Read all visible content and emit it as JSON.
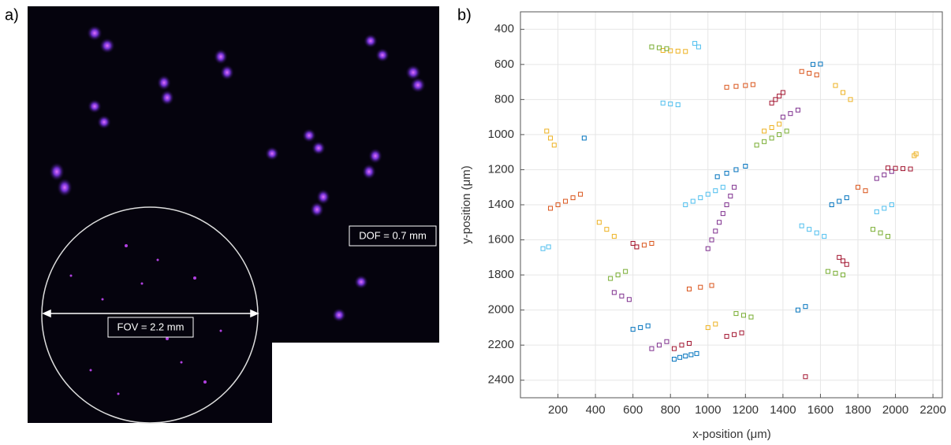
{
  "image_panel": {
    "label": "a)",
    "dof_label": "DOF = 0.7 mm",
    "fov_label": "FOV = 2.2 mm"
  },
  "chart_data": {
    "type": "scatter",
    "panel_label": "b)",
    "x_label": "x-position (μm)",
    "y_label": "y-position (μm)",
    "xlim": [
      0,
      2250
    ],
    "ylim": [
      300,
      2500
    ],
    "y_reversed": true,
    "grid": true,
    "xticks": [
      200,
      400,
      600,
      800,
      1000,
      1200,
      1400,
      1600,
      1800,
      2000,
      2200
    ],
    "yticks": [
      400,
      600,
      800,
      1000,
      1200,
      1400,
      1600,
      1800,
      2000,
      2200,
      2400
    ],
    "series": [
      {
        "color": "#0072BD",
        "x": [
          820,
          850,
          880,
          910,
          940,
          1560,
          1600,
          1660,
          1700,
          1740,
          600,
          640,
          680,
          1050,
          1100,
          1150,
          1200,
          340,
          1480,
          1520
        ],
        "y": [
          2280,
          2270,
          2262,
          2255,
          2248,
          600,
          598,
          1400,
          1380,
          1360,
          2110,
          2100,
          2090,
          1240,
          1220,
          1200,
          1180,
          1020,
          2000,
          1980
        ]
      },
      {
        "color": "#D95319",
        "x": [
          160,
          200,
          240,
          280,
          320,
          620,
          660,
          700,
          1100,
          1150,
          1200,
          1240,
          1500,
          1540,
          1580,
          900,
          960,
          1020,
          1800,
          1840
        ],
        "y": [
          1420,
          1400,
          1380,
          1360,
          1340,
          1640,
          1630,
          1620,
          730,
          725,
          720,
          715,
          640,
          650,
          660,
          1880,
          1870,
          1860,
          1300,
          1320
        ]
      },
      {
        "color": "#EDB120",
        "x": [
          140,
          160,
          180,
          760,
          800,
          840,
          880,
          1300,
          1340,
          1380,
          420,
          460,
          500,
          1680,
          1720,
          1760,
          2100,
          2110,
          1000,
          1040
        ],
        "y": [
          980,
          1020,
          1060,
          520,
          522,
          524,
          526,
          980,
          960,
          940,
          1500,
          1540,
          1580,
          720,
          760,
          800,
          1120,
          1110,
          2100,
          2080
        ]
      },
      {
        "color": "#7E2F8E",
        "x": [
          1000,
          1020,
          1040,
          1060,
          1080,
          1100,
          1120,
          1140,
          700,
          740,
          780,
          1400,
          1440,
          1480,
          1900,
          1940,
          1980,
          500,
          540,
          580
        ],
        "y": [
          1650,
          1600,
          1550,
          1500,
          1450,
          1400,
          1350,
          1300,
          2220,
          2200,
          2180,
          900,
          880,
          860,
          1250,
          1230,
          1210,
          1900,
          1920,
          1940
        ]
      },
      {
        "color": "#77AC30",
        "x": [
          1260,
          1300,
          1340,
          1380,
          1420,
          700,
          740,
          780,
          1640,
          1680,
          1720,
          1150,
          1190,
          1230,
          480,
          520,
          560,
          1880,
          1920,
          1960
        ],
        "y": [
          1060,
          1040,
          1020,
          1000,
          980,
          500,
          505,
          510,
          1780,
          1790,
          1800,
          2020,
          2030,
          2040,
          1820,
          1800,
          1780,
          1540,
          1560,
          1580
        ]
      },
      {
        "color": "#4DBEEE",
        "x": [
          880,
          920,
          960,
          1000,
          1040,
          1080,
          120,
          150,
          1500,
          1540,
          1580,
          1620,
          760,
          800,
          840,
          1900,
          1940,
          1980,
          930,
          950
        ],
        "y": [
          1400,
          1380,
          1360,
          1340,
          1320,
          1300,
          1650,
          1640,
          1520,
          1540,
          1560,
          1580,
          820,
          825,
          830,
          1440,
          1420,
          1400,
          480,
          500
        ]
      },
      {
        "color": "#A2142F",
        "x": [
          1340,
          1360,
          1380,
          1400,
          1960,
          2000,
          2040,
          2080,
          820,
          860,
          900,
          1100,
          1140,
          1180,
          1700,
          1720,
          1740,
          600,
          620,
          1520
        ],
        "y": [
          820,
          800,
          780,
          760,
          1190,
          1192,
          1194,
          1196,
          2220,
          2200,
          2190,
          2150,
          2140,
          2130,
          1700,
          1720,
          1740,
          1620,
          1640,
          2380
        ]
      }
    ]
  }
}
